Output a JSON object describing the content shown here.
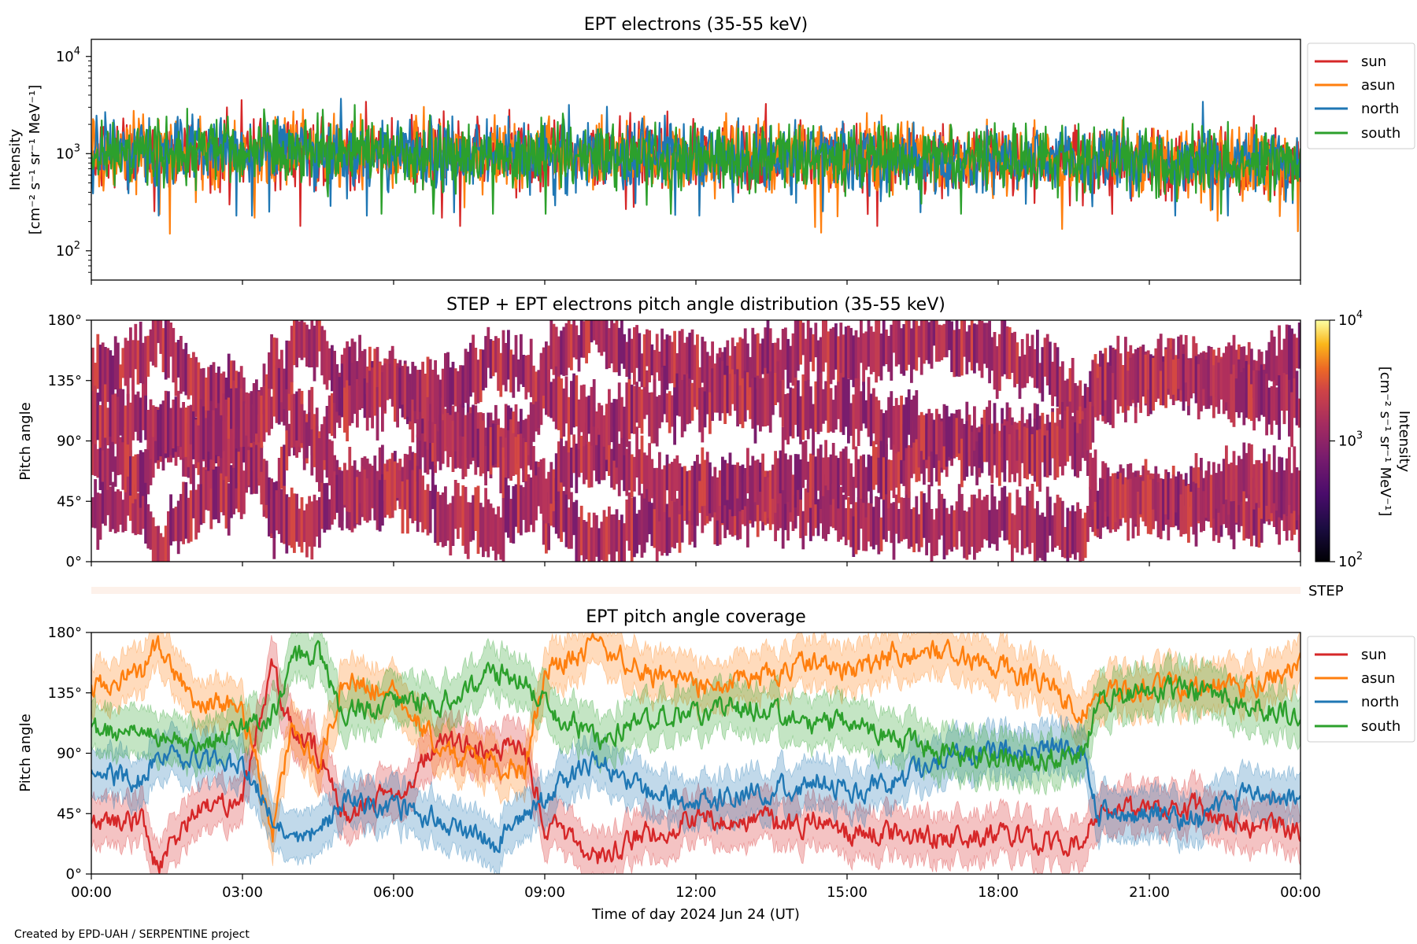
{
  "credit": "Created by EPD-UAH / SERPENTINE project",
  "chart_data": [
    {
      "id": "intensity",
      "type": "line",
      "title": "EPT electrons (35-55 keV)",
      "ylabel_lines": [
        "Intensity",
        "[cm⁻² s⁻¹ sr⁻¹ MeV⁻¹]"
      ],
      "yscale": "log",
      "ylim": [
        50,
        15000
      ],
      "yticks": [
        {
          "value": 100,
          "exp": "2"
        },
        {
          "value": 1000,
          "exp": "3"
        },
        {
          "value": 10000,
          "exp": "4"
        }
      ],
      "xlim_hours": [
        0,
        24
      ],
      "legend": "outside-right",
      "series": [
        {
          "name": "sun",
          "color": "#d62728",
          "x_hours": [
            0,
            2,
            4,
            6,
            8,
            10,
            12,
            14,
            16,
            18,
            20,
            22,
            24
          ],
          "values": [
            1000,
            1050,
            1100,
            1050,
            1000,
            980,
            950,
            950,
            920,
            900,
            880,
            850,
            820
          ],
          "min_spike": 180
        },
        {
          "name": "asun",
          "color": "#ff7f0e",
          "x_hours": [
            0,
            2,
            4,
            6,
            8,
            10,
            12,
            14,
            16,
            18,
            20,
            22,
            24
          ],
          "values": [
            1000,
            1000,
            1050,
            1000,
            980,
            950,
            930,
            920,
            900,
            880,
            860,
            830,
            800
          ],
          "min_spike": 150
        },
        {
          "name": "north",
          "color": "#1f77b4",
          "x_hours": [
            0,
            2,
            4,
            6,
            8,
            10,
            12,
            14,
            16,
            18,
            20,
            22,
            24
          ],
          "values": [
            1000,
            1050,
            1080,
            1040,
            1000,
            970,
            940,
            930,
            900,
            880,
            860,
            840,
            800
          ],
          "min_spike": 230
        },
        {
          "name": "south",
          "color": "#2ca02c",
          "x_hours": [
            0,
            2,
            4,
            6,
            8,
            10,
            12,
            14,
            16,
            18,
            20,
            22,
            24
          ],
          "values": [
            1000,
            1040,
            1080,
            1030,
            1000,
            970,
            940,
            930,
            900,
            880,
            860,
            840,
            800
          ],
          "min_spike": 240
        }
      ]
    },
    {
      "id": "pad",
      "type": "heatmap",
      "title": "STEP + EPT electrons pitch angle distribution (35-55 keV)",
      "ylabel": "Pitch angle",
      "ylim": [
        0,
        180
      ],
      "yticks": [
        "0°",
        "45°",
        "90°",
        "135°",
        "180°"
      ],
      "colorbar": {
        "scale": "log",
        "range": [
          100,
          10000
        ],
        "ticks": [
          {
            "value": 100,
            "exp": "2"
          },
          {
            "value": 1000,
            "exp": "3"
          },
          {
            "value": 10000,
            "exp": "4"
          }
        ],
        "label_lines": [
          "Intensity",
          "[cm⁻² s⁻¹ sr⁻¹ MeV⁻¹]"
        ],
        "colormap": "inferno"
      },
      "typical_intensity": 950
    },
    {
      "id": "step",
      "type": "heatmap",
      "label": "STEP"
    },
    {
      "id": "coverage",
      "type": "line",
      "title": "EPT pitch angle coverage",
      "ylabel": "Pitch angle",
      "ylim": [
        0,
        180
      ],
      "yticks": [
        "0°",
        "45°",
        "90°",
        "135°",
        "180°"
      ],
      "xlabel": "Time of day 2024 Jun 24 (UT)",
      "xticks": [
        "00:00",
        "03:00",
        "06:00",
        "09:00",
        "12:00",
        "15:00",
        "18:00",
        "21:00",
        "00:00"
      ],
      "xlim_hours": [
        0,
        24
      ],
      "band_halfwidth_deg": 18,
      "legend": "outside-right",
      "series": [
        {
          "name": "sun",
          "color": "#d62728",
          "x_hours": [
            0,
            1,
            1.3,
            2,
            3,
            3.6,
            4,
            4.5,
            5,
            6,
            7,
            8,
            8.6,
            9,
            10,
            11,
            12,
            13,
            14,
            14.5,
            15,
            16,
            17,
            18,
            19,
            19.7,
            20,
            21,
            22,
            23,
            24
          ],
          "values": [
            38,
            42,
            5,
            44,
            60,
            155,
            105,
            90,
            45,
            60,
            100,
            92,
            95,
            38,
            12,
            30,
            42,
            40,
            35,
            42,
            30,
            30,
            26,
            30,
            22,
            25,
            45,
            47,
            50,
            35,
            32
          ]
        },
        {
          "name": "asun",
          "color": "#ff7f0e",
          "x_hours": [
            0,
            1,
            1.3,
            2,
            3,
            3.6,
            4,
            4.5,
            5,
            6,
            7,
            8,
            8.6,
            9,
            10,
            11,
            12,
            13,
            14,
            14.5,
            15,
            16,
            17,
            18,
            19,
            19.7,
            20,
            21,
            22,
            23,
            24
          ],
          "values": [
            140,
            150,
            172,
            130,
            125,
            30,
            115,
            80,
            145,
            135,
            90,
            80,
            75,
            150,
            172,
            150,
            140,
            145,
            155,
            160,
            150,
            165,
            165,
            155,
            140,
            120,
            130,
            140,
            138,
            140,
            155
          ]
        },
        {
          "name": "north",
          "color": "#1f77b4",
          "x_hours": [
            0,
            1,
            1.3,
            2,
            3,
            3.6,
            4,
            4.5,
            5,
            6,
            7,
            8,
            8.6,
            9,
            10,
            11,
            12,
            13,
            14,
            14.5,
            15,
            16,
            17,
            18,
            19,
            19.7,
            20,
            21,
            22,
            23,
            24
          ],
          "values": [
            75,
            70,
            90,
            85,
            80,
            45,
            25,
            30,
            55,
            50,
            40,
            20,
            45,
            55,
            85,
            60,
            55,
            60,
            65,
            70,
            60,
            70,
            85,
            90,
            95,
            85,
            45,
            45,
            40,
            60,
            55
          ]
        },
        {
          "name": "south",
          "color": "#2ca02c",
          "x_hours": [
            0,
            1,
            1.3,
            2,
            3,
            3.6,
            4,
            4.5,
            5,
            6,
            7,
            8,
            8.6,
            9,
            10,
            11,
            12,
            13,
            14,
            14.5,
            15,
            16,
            17,
            18,
            19,
            19.7,
            20,
            21,
            22,
            23,
            24
          ],
          "values": [
            105,
            110,
            100,
            95,
            110,
            120,
            160,
            165,
            120,
            125,
            130,
            150,
            145,
            125,
            100,
            115,
            120,
            125,
            115,
            110,
            115,
            100,
            90,
            85,
            85,
            90,
            130,
            138,
            135,
            125,
            120
          ]
        }
      ]
    }
  ]
}
